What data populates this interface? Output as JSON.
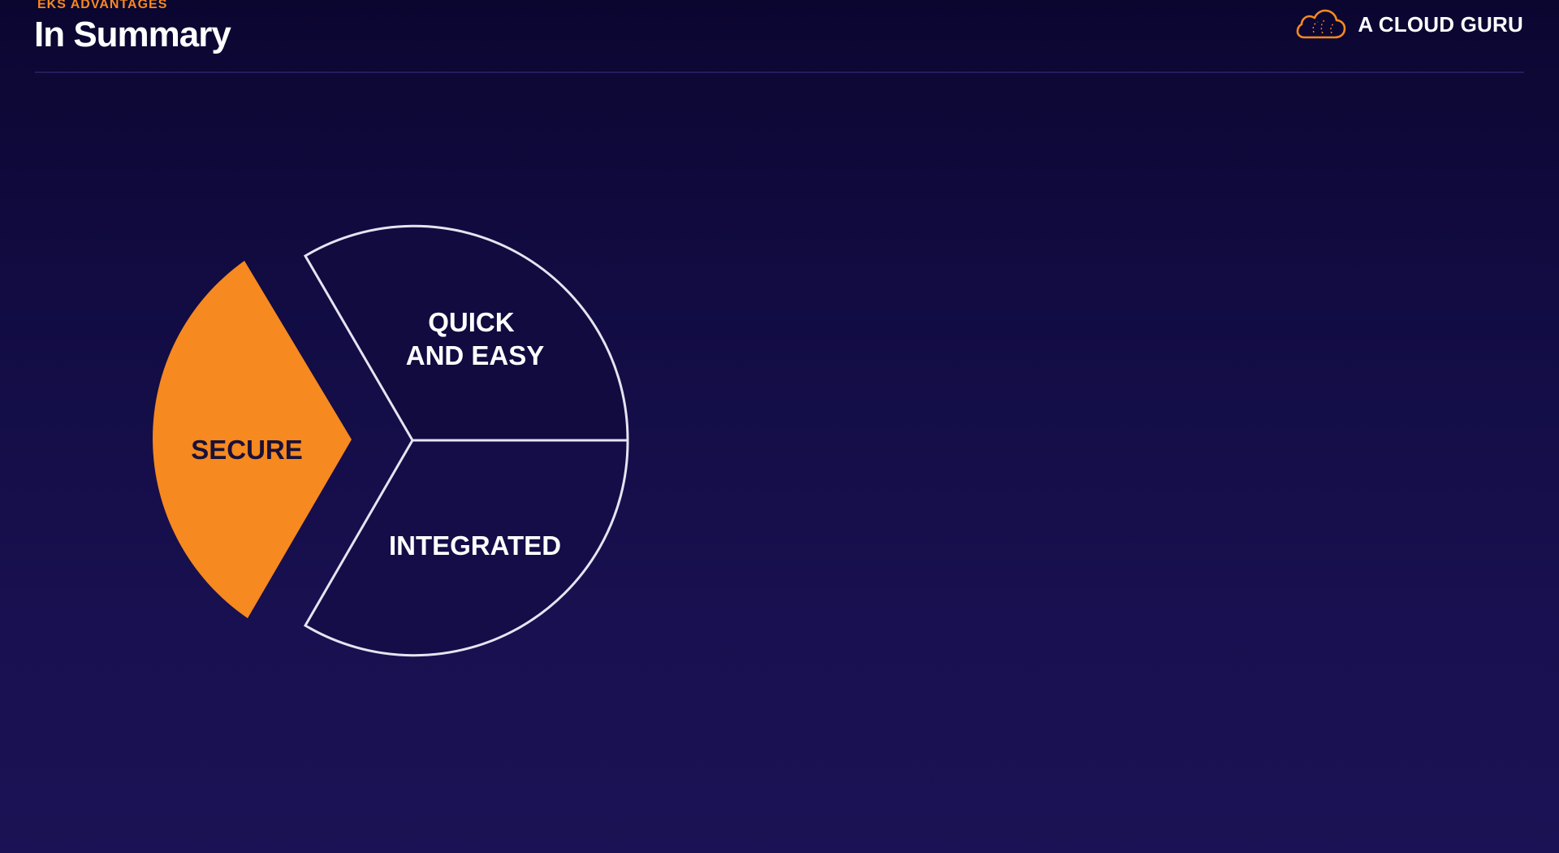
{
  "header": {
    "eyebrow": "EKS ADVANTAGES",
    "title": "In Summary",
    "brand_name": "A CLOUD GURU",
    "brand_icon": "cloud-icon"
  },
  "diagram": {
    "segments": [
      {
        "key": "secure",
        "lines": [
          "SECURE"
        ],
        "highlighted": true
      },
      {
        "key": "quick",
        "lines": [
          "QUICK",
          "AND EASY"
        ],
        "highlighted": false
      },
      {
        "key": "integrated",
        "lines": [
          "INTEGRATED"
        ],
        "highlighted": false
      }
    ]
  },
  "colors": {
    "accent": "#f6891f",
    "background_top": "#0b0630",
    "background_bottom": "#1b1255",
    "outline": "#e6e4f2",
    "text_light": "#ffffff",
    "text_dark": "#1a1138"
  }
}
